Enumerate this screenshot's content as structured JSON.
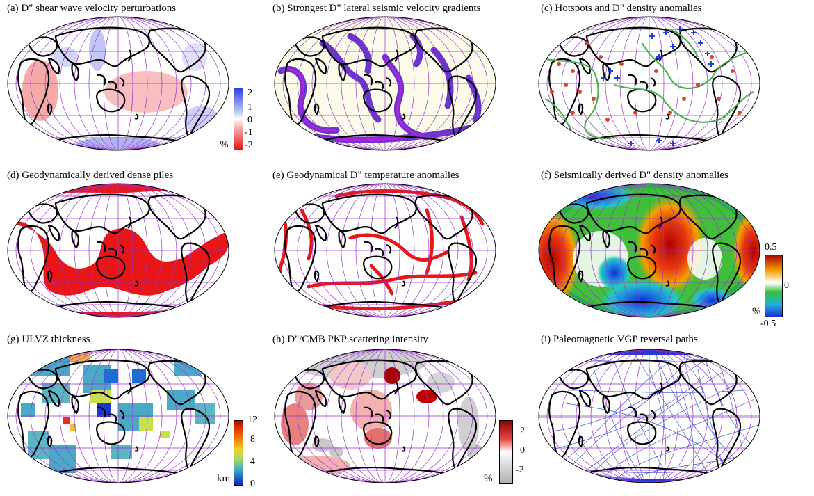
{
  "panels": [
    {
      "id": "a",
      "title": "(a) D\" shear wave velocity perturbations"
    },
    {
      "id": "b",
      "title": "(b) Strongest D\" lateral seismic velocity gradients"
    },
    {
      "id": "c",
      "title": "(c) Hotspots and D\" density anomalies"
    },
    {
      "id": "d",
      "title": "(d) Geodynamically derived dense piles"
    },
    {
      "id": "e",
      "title": "(e) Geodynamical D\" temperature anomalies"
    },
    {
      "id": "f",
      "title": "(f) Seismically derived D\" density anomalies"
    },
    {
      "id": "g",
      "title": "(g) ULVZ thickness"
    },
    {
      "id": "h",
      "title": "(h) D\"/CMB PKP scattering intensity"
    },
    {
      "id": "i",
      "title": "(i) Paleomagnetic VGP reversal paths"
    }
  ],
  "colorbars": {
    "a": {
      "unit": "%",
      "ticks": [
        "2",
        "1",
        "0",
        "-1",
        "-2"
      ]
    },
    "f": {
      "unit": "%",
      "ticks": [
        "0.5",
        "0",
        "-0.5"
      ]
    },
    "g": {
      "unit": "km",
      "ticks": [
        "12",
        "8",
        "4",
        "0"
      ]
    },
    "h": {
      "unit": "%",
      "ticks": [
        "2",
        "0",
        "-2"
      ]
    }
  },
  "colors": {
    "continent": "#000000",
    "graticule": "#9933cc",
    "hotspot": "#d9442b",
    "positive_anomaly": "#1f3fe0",
    "plate_boundary": "#4caf50",
    "dense_pile": "#e81616",
    "vgp_path": "#1f35d6"
  }
}
